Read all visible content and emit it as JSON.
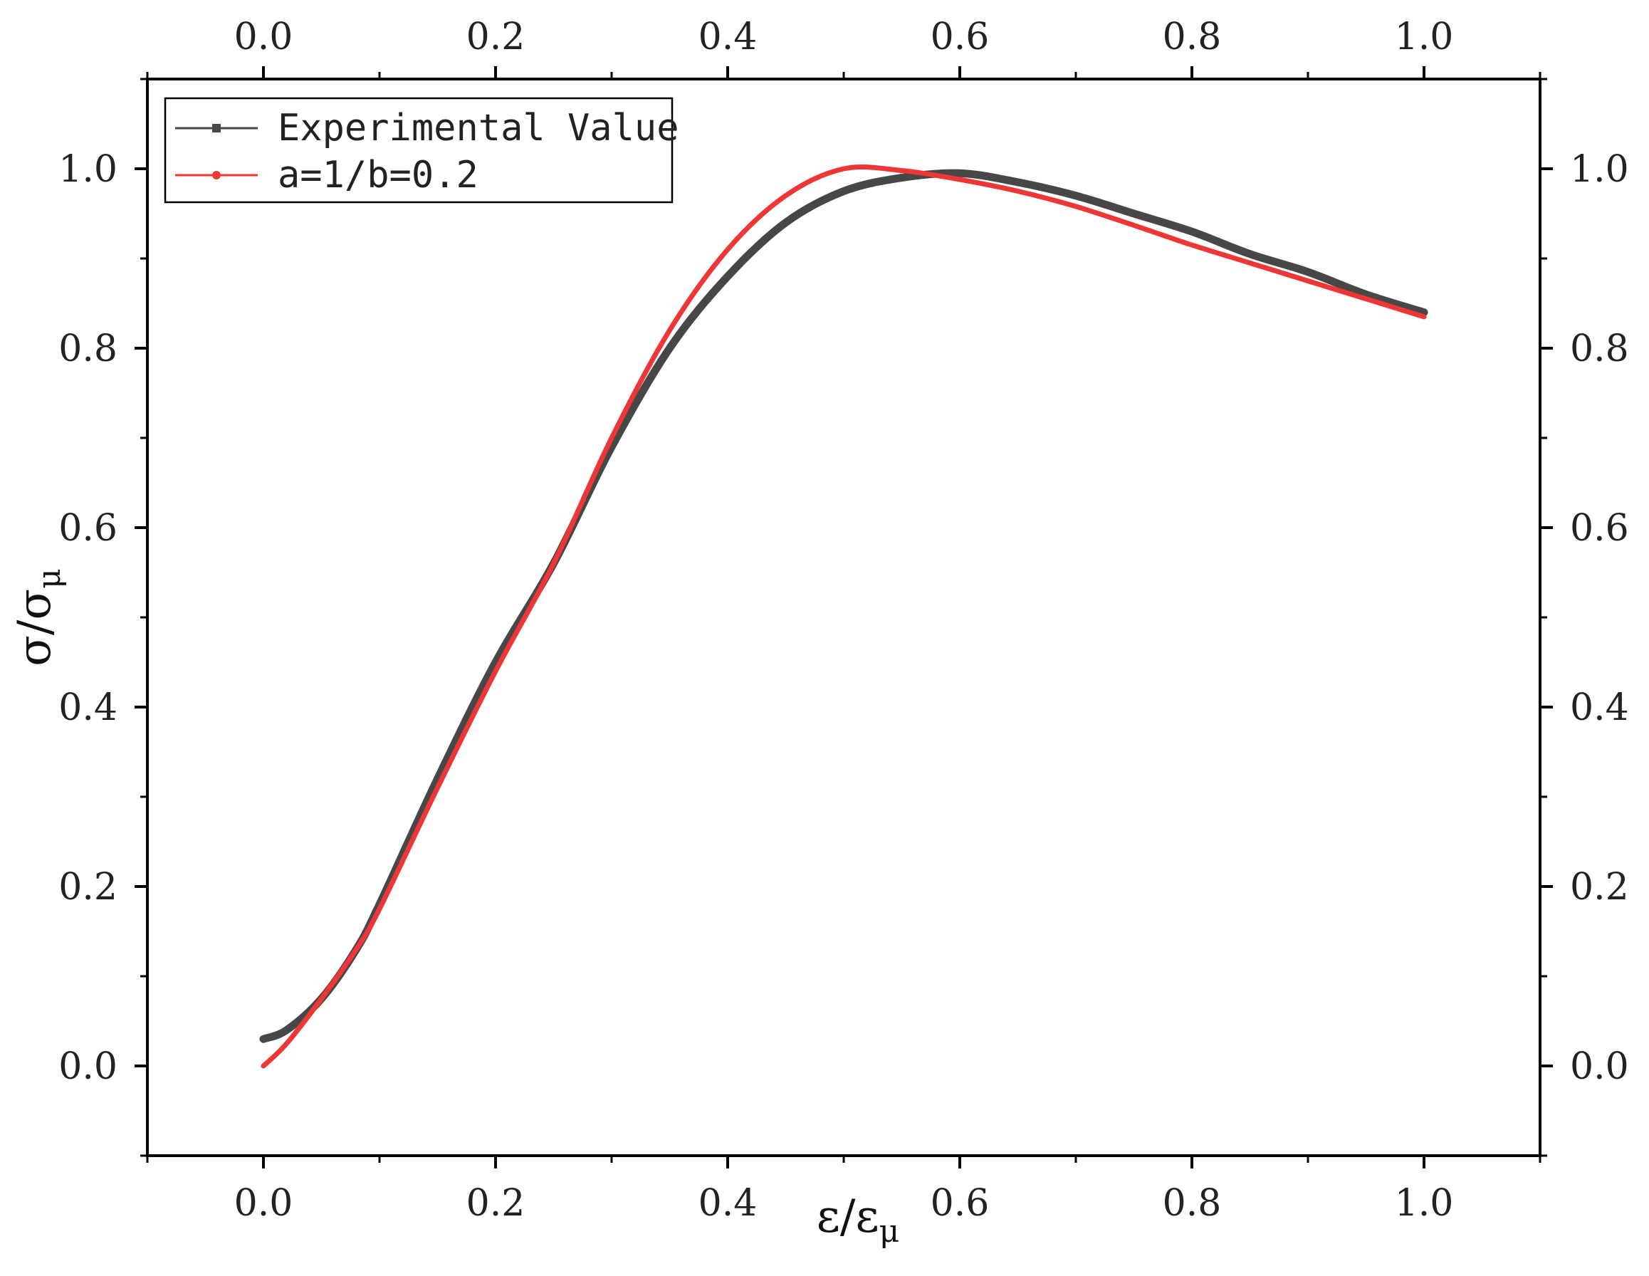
{
  "chart_data": {
    "type": "line",
    "xlabel": "ε/ε",
    "xlabel_sub": "μ",
    "ylabel": "σ/σ",
    "ylabel_sub": "μ",
    "xlim": [
      -0.1,
      1.1
    ],
    "ylim": [
      -0.1,
      1.1
    ],
    "x_ticks": [
      "0.0",
      "0.2",
      "0.4",
      "0.6",
      "0.8",
      "1.0"
    ],
    "y_ticks": [
      "0.0",
      "0.2",
      "0.4",
      "0.6",
      "0.8",
      "1.0"
    ],
    "grid": false,
    "mirror_axes": true,
    "legend_position": "top-left",
    "series": [
      {
        "name": "Experimental Value",
        "color": "#474747",
        "marker": "square",
        "x": [
          0.0,
          0.02,
          0.05,
          0.08,
          0.1,
          0.15,
          0.2,
          0.25,
          0.3,
          0.35,
          0.4,
          0.45,
          0.5,
          0.55,
          0.6,
          0.65,
          0.7,
          0.75,
          0.8,
          0.85,
          0.9,
          0.95,
          1.0
        ],
        "y": [
          0.03,
          0.04,
          0.075,
          0.13,
          0.18,
          0.32,
          0.45,
          0.56,
          0.69,
          0.8,
          0.88,
          0.94,
          0.975,
          0.99,
          0.995,
          0.985,
          0.97,
          0.95,
          0.93,
          0.905,
          0.885,
          0.86,
          0.84
        ]
      },
      {
        "name": "a=1/b=0.2",
        "color": "#ee3636",
        "marker": "circle",
        "x": [
          0.0,
          0.02,
          0.05,
          0.08,
          0.1,
          0.15,
          0.2,
          0.25,
          0.3,
          0.35,
          0.4,
          0.45,
          0.5,
          0.55,
          0.6,
          0.65,
          0.7,
          0.75,
          0.8,
          0.85,
          0.9,
          0.95,
          1.0
        ],
        "y": [
          0.0,
          0.025,
          0.075,
          0.13,
          0.175,
          0.31,
          0.44,
          0.56,
          0.7,
          0.82,
          0.91,
          0.97,
          1.0,
          0.998,
          0.988,
          0.975,
          0.958,
          0.937,
          0.915,
          0.895,
          0.875,
          0.855,
          0.835
        ]
      }
    ]
  }
}
